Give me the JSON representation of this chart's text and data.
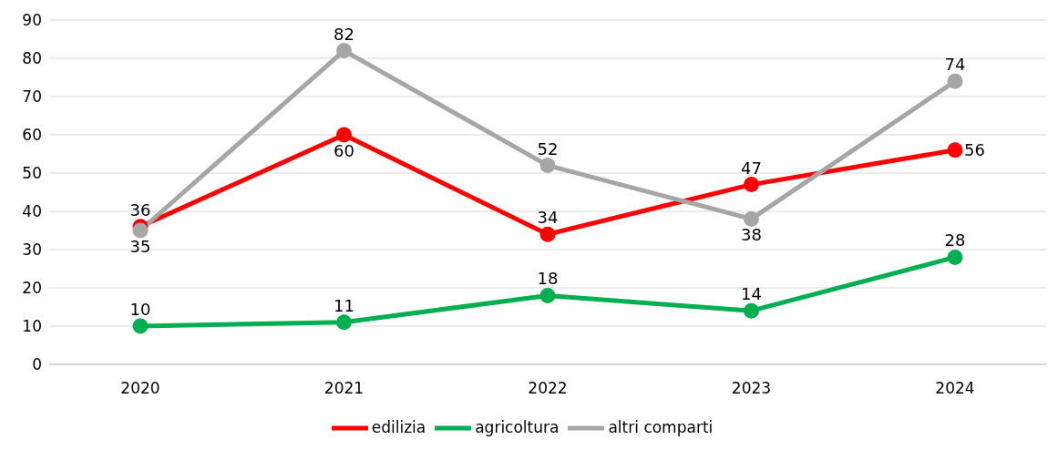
{
  "chart_data": {
    "type": "line",
    "categories": [
      "2020",
      "2021",
      "2022",
      "2023",
      "2024"
    ],
    "series": [
      {
        "name": "edilizia",
        "color": "#ff0000",
        "values": [
          36,
          60,
          34,
          47,
          56
        ]
      },
      {
        "name": "agricoltura",
        "color": "#00b050",
        "values": [
          10,
          11,
          18,
          14,
          28
        ]
      },
      {
        "name": "altri comparti",
        "color": "#a6a6a6",
        "values": [
          35,
          82,
          52,
          38,
          74
        ]
      }
    ],
    "ylim": [
      0,
      90
    ],
    "yticks": [
      0,
      10,
      20,
      30,
      40,
      50,
      60,
      70,
      80,
      90
    ],
    "grid": "y",
    "legend": "bottom",
    "marker": "circle",
    "line_style": "solid",
    "data_labels": true
  }
}
